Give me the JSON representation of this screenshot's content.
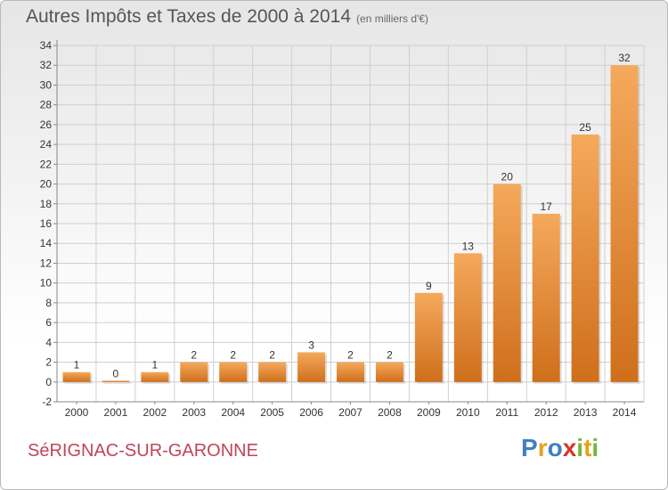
{
  "header": {
    "title": "Autres Impôts et Taxes de 2000 à 2014",
    "unit": "(en milliers d'€)"
  },
  "footer": {
    "commune": "SéRIGNAC-SUR-GARONNE",
    "logo": "Proxiti",
    "logo_letters": [
      {
        "ch": "P",
        "color": "#3f7fc7"
      },
      {
        "ch": "r",
        "color": "#e8a21a"
      },
      {
        "ch": "o",
        "color": "#3f7fc7"
      },
      {
        "ch": "x",
        "color": "#d8342a"
      },
      {
        "ch": "i",
        "color": "#73b63a"
      },
      {
        "ch": "t",
        "color": "#e8a21a"
      },
      {
        "ch": "i",
        "color": "#73b63a"
      }
    ]
  },
  "chart_data": {
    "type": "bar",
    "title": "Autres Impôts et Taxes de 2000 à 2014",
    "subtitle": "(en milliers d'€)",
    "categories": [
      "2000",
      "2001",
      "2002",
      "2003",
      "2004",
      "2005",
      "2006",
      "2007",
      "2008",
      "2009",
      "2010",
      "2011",
      "2012",
      "2013",
      "2014"
    ],
    "values": [
      1,
      0,
      1,
      2,
      2,
      2,
      3,
      2,
      2,
      9,
      13,
      20,
      17,
      25,
      32
    ],
    "ylim": [
      -2,
      34
    ],
    "yticks": [
      -2,
      0,
      2,
      4,
      6,
      8,
      10,
      12,
      14,
      16,
      18,
      20,
      22,
      24,
      26,
      28,
      30,
      32,
      34
    ],
    "grid": true,
    "colors": {
      "bar_light": "#f5a95c",
      "bar_dark": "#cf6f1c",
      "grid": "#cfcfcf"
    }
  }
}
